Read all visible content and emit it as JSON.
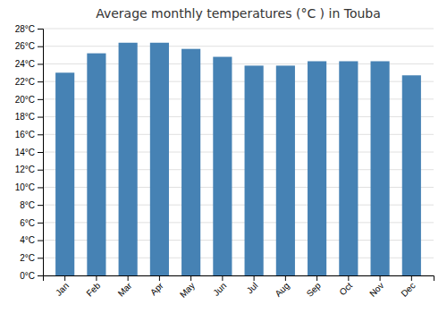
{
  "chart_data": {
    "type": "bar",
    "title": "Average monthly temperatures (°C ) in Touba",
    "categories": [
      "Jan",
      "Feb",
      "Mar",
      "Apr",
      "May",
      "Jun",
      "Jul",
      "Aug",
      "Sep",
      "Oct",
      "Nov",
      "Dec"
    ],
    "values": [
      23.0,
      25.2,
      26.4,
      26.4,
      25.7,
      24.8,
      23.8,
      23.8,
      24.3,
      24.3,
      24.3,
      22.7
    ],
    "ylim": [
      0,
      28
    ],
    "yticks": [
      {
        "value": 0,
        "label": "0°C"
      },
      {
        "value": 2,
        "label": "2°C"
      },
      {
        "value": 4,
        "label": "4°C"
      },
      {
        "value": 6,
        "label": "6°C"
      },
      {
        "value": 8,
        "label": "8°C"
      },
      {
        "value": 10,
        "label": "10°C"
      },
      {
        "value": 12,
        "label": "12°C"
      },
      {
        "value": 14,
        "label": "14°C"
      },
      {
        "value": 16,
        "label": "16°C"
      },
      {
        "value": 18,
        "label": "18°C"
      },
      {
        "value": 20,
        "label": "20°C"
      },
      {
        "value": 22,
        "label": "22°C"
      },
      {
        "value": 24,
        "label": "24°C"
      },
      {
        "value": 26,
        "label": "26°C"
      },
      {
        "value": 28,
        "label": "28°C"
      }
    ],
    "grid": true
  }
}
